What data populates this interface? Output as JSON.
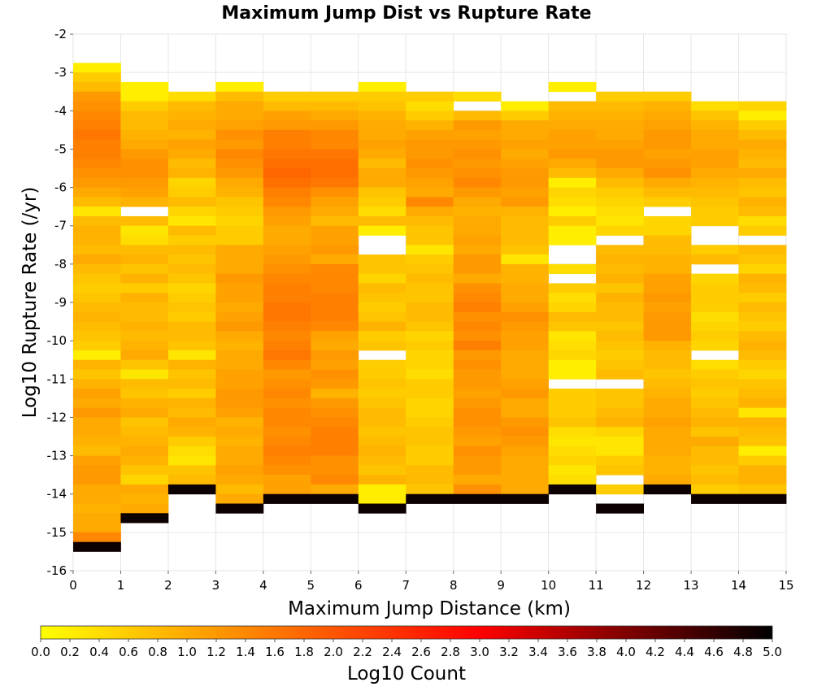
{
  "chart_data": {
    "type": "heatmap",
    "title": "Maximum Jump Dist vs Rupture Rate",
    "xlabel": "Maximum Jump Distance (km)",
    "ylabel": "Log10 Rupture Rate (/yr)",
    "xlim": [
      0,
      15
    ],
    "ylim": [
      -16,
      -2
    ],
    "x_ticks": [
      "0",
      "1",
      "2",
      "3",
      "4",
      "5",
      "6",
      "7",
      "8",
      "9",
      "10",
      "11",
      "12",
      "13",
      "14",
      "15"
    ],
    "y_ticks": [
      "-2",
      "-3",
      "-4",
      "-5",
      "-6",
      "-7",
      "-8",
      "-9",
      "-10",
      "-11",
      "-12",
      "-13",
      "-14",
      "-15",
      "-16"
    ],
    "grid": true,
    "colorbar": {
      "label": "Log10 Count",
      "range": [
        0,
        5
      ],
      "ticks": [
        "0.0",
        "0.2",
        "0.4",
        "0.6",
        "0.8",
        "1.0",
        "1.2",
        "1.4",
        "1.6",
        "1.8",
        "2.0",
        "2.2",
        "2.4",
        "2.6",
        "2.8",
        "3.0",
        "3.2",
        "3.4",
        "3.6",
        "3.8",
        "4.0",
        "4.2",
        "4.4",
        "4.6",
        "4.8",
        "5.0"
      ],
      "colors": [
        "#ffff00",
        "#ffaa00",
        "#ff5500",
        "#ff0000",
        "#800000",
        "#000000"
      ]
    },
    "y_bin_width": 0.25,
    "columns": [
      {
        "x": 0.5,
        "top": -2.75,
        "values": [
          0.2,
          0.6,
          0.8,
          1.2,
          1.3,
          1.4,
          1.5,
          1.6,
          1.5,
          1.5,
          1.4,
          1.3,
          1.2,
          1.0,
          0.8,
          0.3,
          0.8,
          0.9,
          0.9,
          0.8,
          1.0,
          0.8,
          0.7,
          0.6,
          0.7,
          0.8,
          0.9,
          0.8,
          0.7,
          0.6,
          0.2,
          0.9,
          0.7,
          0.9,
          1.1,
          1.0,
          1.2,
          1.0,
          1.0,
          0.9,
          0.8,
          1.1,
          1.2,
          1.2,
          1.0,
          1.0,
          0.9,
          1.0,
          1.0,
          1.4,
          4.9
        ]
      },
      {
        "x": 1.5,
        "top": -3.25,
        "values": [
          0.2,
          0.2,
          0.6,
          0.8,
          0.8,
          0.9,
          1.0,
          1.2,
          1.3,
          1.3,
          1.2,
          1.1,
          0.9,
          null,
          0.8,
          0.3,
          0.4,
          0.8,
          0.9,
          0.7,
          0.9,
          0.6,
          0.9,
          0.8,
          0.8,
          0.9,
          0.8,
          0.9,
          1.0,
          0.7,
          0.3,
          0.8,
          0.7,
          0.9,
          1.0,
          0.7,
          0.8,
          0.9,
          1.0,
          0.9,
          0.7,
          0.5,
          1.0,
          0.9,
          1.0,
          4.9
        ]
      },
      {
        "x": 2.5,
        "top": -3.5,
        "values": [
          0.4,
          0.8,
          0.9,
          1.0,
          0.9,
          1.1,
          1.0,
          0.8,
          0.9,
          0.5,
          0.6,
          0.8,
          0.5,
          0.3,
          0.8,
          0.6,
          0.8,
          0.7,
          0.8,
          0.7,
          0.5,
          0.6,
          0.7,
          0.6,
          0.8,
          0.8,
          0.7,
          0.3,
          0.9,
          0.7,
          0.8,
          0.6,
          0.9,
          0.8,
          1.0,
          0.9,
          0.6,
          0.4,
          0.3,
          0.7,
          0.8,
          4.9
        ]
      },
      {
        "x": 3.5,
        "top": -3.25,
        "values": [
          0.2,
          0.8,
          1.0,
          1.0,
          1.1,
          1.3,
          1.2,
          1.4,
          1.3,
          1.2,
          1.0,
          0.9,
          0.7,
          0.6,
          0.5,
          0.6,
          0.6,
          1.0,
          1.0,
          1.0,
          1.2,
          1.1,
          1.1,
          1.0,
          1.1,
          1.2,
          1.0,
          0.9,
          1.0,
          1.0,
          1.1,
          1.1,
          1.2,
          1.2,
          1.1,
          0.9,
          1.0,
          0.9,
          1.0,
          1.0,
          1.1,
          1.0,
          0.8,
          1.0,
          4.9
        ]
      },
      {
        "x": 4.5,
        "top": -3.5,
        "values": [
          0.6,
          0.8,
          1.1,
          1.2,
          1.5,
          1.5,
          1.6,
          1.7,
          1.8,
          1.7,
          1.5,
          1.4,
          1.2,
          1.1,
          1.0,
          1.0,
          1.1,
          1.2,
          1.3,
          1.4,
          1.5,
          1.5,
          1.6,
          1.6,
          1.5,
          1.4,
          1.5,
          1.6,
          1.4,
          1.2,
          1.3,
          1.4,
          1.3,
          1.4,
          1.4,
          1.3,
          1.4,
          1.5,
          1.4,
          1.3,
          1.1,
          1.1,
          4.9
        ]
      },
      {
        "x": 5.5,
        "top": -3.5,
        "values": [
          0.6,
          0.8,
          1.0,
          1.2,
          1.4,
          1.4,
          1.6,
          1.7,
          1.7,
          1.6,
          1.3,
          1.1,
          1.0,
          0.8,
          1.1,
          1.1,
          1.2,
          1.0,
          1.4,
          1.4,
          1.4,
          1.5,
          1.5,
          1.5,
          1.4,
          1.1,
          1.0,
          1.2,
          1.1,
          1.3,
          1.2,
          0.9,
          1.2,
          1.3,
          1.4,
          1.5,
          1.5,
          1.5,
          1.3,
          1.3,
          1.4,
          1.0,
          4.9
        ]
      },
      {
        "x": 6.5,
        "top": -3.25,
        "values": [
          0.2,
          0.6,
          0.7,
          0.9,
          1.0,
          1.0,
          1.1,
          1.0,
          0.8,
          1.0,
          1.0,
          0.7,
          0.6,
          0.4,
          0.8,
          0.2,
          null,
          null,
          0.7,
          0.7,
          0.5,
          0.8,
          0.7,
          0.6,
          0.7,
          0.9,
          0.6,
          0.7,
          null,
          0.6,
          0.6,
          0.7,
          0.6,
          0.7,
          0.8,
          0.8,
          0.7,
          0.8,
          0.9,
          0.8,
          0.7,
          0.9,
          0.2,
          0.2,
          4.9
        ]
      },
      {
        "x": 7.5,
        "top": -3.5,
        "values": [
          0.6,
          0.4,
          0.6,
          0.9,
          1.1,
          1.2,
          1.2,
          1.3,
          1.2,
          1.1,
          1.0,
          1.4,
          1.0,
          0.8,
          0.7,
          0.7,
          0.3,
          0.6,
          0.7,
          0.8,
          0.7,
          0.7,
          0.8,
          0.8,
          0.7,
          0.5,
          0.6,
          0.5,
          0.5,
          0.4,
          0.6,
          0.6,
          0.5,
          0.5,
          0.6,
          0.7,
          0.7,
          0.6,
          0.6,
          0.8,
          0.8,
          0.7,
          4.9
        ]
      },
      {
        "x": 8.5,
        "top": -3.5,
        "values": [
          0.4,
          null,
          0.8,
          1.2,
          1.1,
          1.2,
          1.3,
          1.2,
          1.3,
          1.4,
          1.2,
          1.0,
          0.9,
          1.0,
          1.0,
          1.1,
          1.0,
          1.2,
          1.2,
          1.0,
          1.3,
          1.4,
          1.5,
          1.3,
          1.4,
          1.3,
          1.5,
          1.2,
          1.3,
          1.2,
          1.2,
          1.1,
          1.2,
          1.3,
          1.3,
          1.2,
          1.1,
          1.3,
          1.2,
          1.2,
          1.0,
          1.3,
          4.9
        ]
      },
      {
        "x": 9.5,
        "top": -3.75,
        "values": [
          0.2,
          0.6,
          1.0,
          1.0,
          1.1,
          1.0,
          1.1,
          1.2,
          1.2,
          1.1,
          1.2,
          0.9,
          0.8,
          0.8,
          0.8,
          0.7,
          0.3,
          0.9,
          0.9,
          1.0,
          1.0,
          1.1,
          1.3,
          1.2,
          1.1,
          1.1,
          1.0,
          1.0,
          1.0,
          1.1,
          1.2,
          1.0,
          1.0,
          1.2,
          1.3,
          1.2,
          1.1,
          1.0,
          1.0,
          1.0,
          1.0,
          4.9
        ]
      },
      {
        "x": 10.5,
        "top": -3.25,
        "values": [
          0.2,
          null,
          0.8,
          0.9,
          1.0,
          1.1,
          1.1,
          1.2,
          1.0,
          0.8,
          0.2,
          0.5,
          0.4,
          0.2,
          0.6,
          0.2,
          0.2,
          null,
          null,
          0.4,
          null,
          0.6,
          0.4,
          0.5,
          0.8,
          0.7,
          0.3,
          0.4,
          0.5,
          0.2,
          0.2,
          null,
          0.6,
          0.6,
          0.6,
          0.7,
          0.4,
          0.3,
          0.4,
          0.5,
          0.3,
          0.4,
          4.9
        ]
      },
      {
        "x": 11.5,
        "top": -3.5,
        "values": [
          0.6,
          0.8,
          0.9,
          1.0,
          1.0,
          1.1,
          1.2,
          1.2,
          1.0,
          0.8,
          0.6,
          0.5,
          0.4,
          0.3,
          0.5,
          null,
          0.8,
          0.9,
          0.8,
          0.9,
          0.7,
          0.9,
          0.8,
          0.8,
          0.7,
          0.8,
          0.7,
          0.6,
          0.7,
          0.8,
          null,
          0.7,
          0.7,
          0.8,
          0.9,
          0.5,
          0.3,
          0.3,
          0.6,
          0.7,
          null,
          0.6,
          null,
          4.9
        ]
      },
      {
        "x": 12.5,
        "top": -3.5,
        "values": [
          0.6,
          0.9,
          1.0,
          1.1,
          1.2,
          1.2,
          1.1,
          1.2,
          1.3,
          1.0,
          0.8,
          0.6,
          null,
          0.5,
          0.5,
          0.8,
          0.8,
          0.9,
          0.9,
          1.1,
          1.1,
          1.2,
          1.1,
          1.2,
          1.2,
          1.2,
          0.9,
          0.8,
          0.8,
          0.7,
          0.8,
          0.9,
          1.0,
          1.0,
          1.1,
          1.0,
          1.0,
          1.0,
          0.9,
          0.9,
          1.0,
          4.9
        ]
      },
      {
        "x": 13.5,
        "top": -3.75,
        "values": [
          0.4,
          0.7,
          0.9,
          1.0,
          1.0,
          1.1,
          1.1,
          1.0,
          0.9,
          0.8,
          0.7,
          0.6,
          0.6,
          null,
          null,
          0.6,
          0.8,
          null,
          0.5,
          0.6,
          0.6,
          0.6,
          0.4,
          0.5,
          0.6,
          0.5,
          null,
          0.4,
          0.6,
          0.7,
          0.6,
          0.7,
          0.8,
          0.9,
          0.7,
          1.0,
          0.8,
          0.8,
          0.7,
          0.8,
          0.6,
          4.9
        ]
      },
      {
        "x": 14.5,
        "top": -3.75,
        "values": [
          0.5,
          0.2,
          0.6,
          0.8,
          1.0,
          0.9,
          0.8,
          1.0,
          0.8,
          0.7,
          0.9,
          0.8,
          0.4,
          0.6,
          null,
          0.8,
          0.7,
          0.5,
          0.9,
          0.8,
          0.6,
          0.8,
          0.7,
          0.6,
          0.8,
          0.9,
          0.8,
          0.6,
          0.5,
          0.7,
          0.8,
          0.9,
          0.3,
          0.9,
          0.8,
          0.7,
          0.2,
          0.6,
          0.9,
          0.9,
          0.7,
          4.9
        ]
      }
    ]
  }
}
